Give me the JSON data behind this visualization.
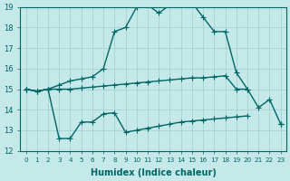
{
  "xlabel": "Humidex (Indice chaleur)",
  "xlim": [
    -0.5,
    23.5
  ],
  "ylim": [
    12,
    19
  ],
  "yticks": [
    12,
    13,
    14,
    15,
    16,
    17,
    18,
    19
  ],
  "xticks": [
    0,
    1,
    2,
    3,
    4,
    5,
    6,
    7,
    8,
    9,
    10,
    11,
    12,
    13,
    14,
    15,
    16,
    17,
    18,
    19,
    20,
    21,
    22,
    23
  ],
  "background_color": "#c5e8e8",
  "grid_color": "#9fcece",
  "line_color": "#006666",
  "line1_x": [
    0,
    1,
    2,
    3,
    4,
    5,
    6,
    7,
    8,
    9,
    10,
    11,
    12,
    13,
    14,
    15,
    16,
    17,
    18,
    19,
    20,
    21,
    22,
    23
  ],
  "line1_y": [
    15.0,
    14.9,
    15.0,
    15.2,
    15.4,
    15.5,
    15.6,
    16.0,
    17.8,
    18.0,
    19.0,
    19.1,
    18.7,
    19.1,
    19.2,
    19.2,
    18.5,
    17.8,
    17.8,
    15.8,
    15.0,
    14.1,
    14.5,
    13.3
  ],
  "line2_x": [
    0,
    1,
    2,
    3,
    4,
    5,
    6,
    7,
    8,
    9,
    10,
    11,
    12,
    13,
    14,
    15,
    16,
    17,
    18,
    19,
    20,
    21,
    22,
    23
  ],
  "line2_y": [
    15.0,
    14.9,
    15.0,
    15.0,
    15.0,
    15.05,
    15.1,
    15.15,
    15.2,
    15.25,
    15.3,
    15.35,
    15.4,
    15.45,
    15.5,
    15.55,
    15.55,
    15.6,
    15.65,
    15.0,
    15.0,
    null,
    null,
    13.3
  ],
  "line3_x": [
    0,
    1,
    2,
    3,
    4,
    5,
    6,
    7,
    8,
    9,
    10,
    11,
    12,
    13,
    14,
    15,
    16,
    17,
    18,
    19,
    20,
    21,
    22,
    23
  ],
  "line3_y": [
    15.0,
    14.9,
    15.0,
    12.6,
    12.6,
    13.4,
    13.4,
    13.8,
    13.85,
    12.9,
    13.0,
    13.1,
    13.2,
    13.3,
    13.4,
    13.45,
    13.5,
    13.55,
    13.6,
    13.65,
    13.7,
    null,
    null,
    13.3
  ],
  "marker": "+",
  "marker_size": 4,
  "linewidth": 1.0
}
